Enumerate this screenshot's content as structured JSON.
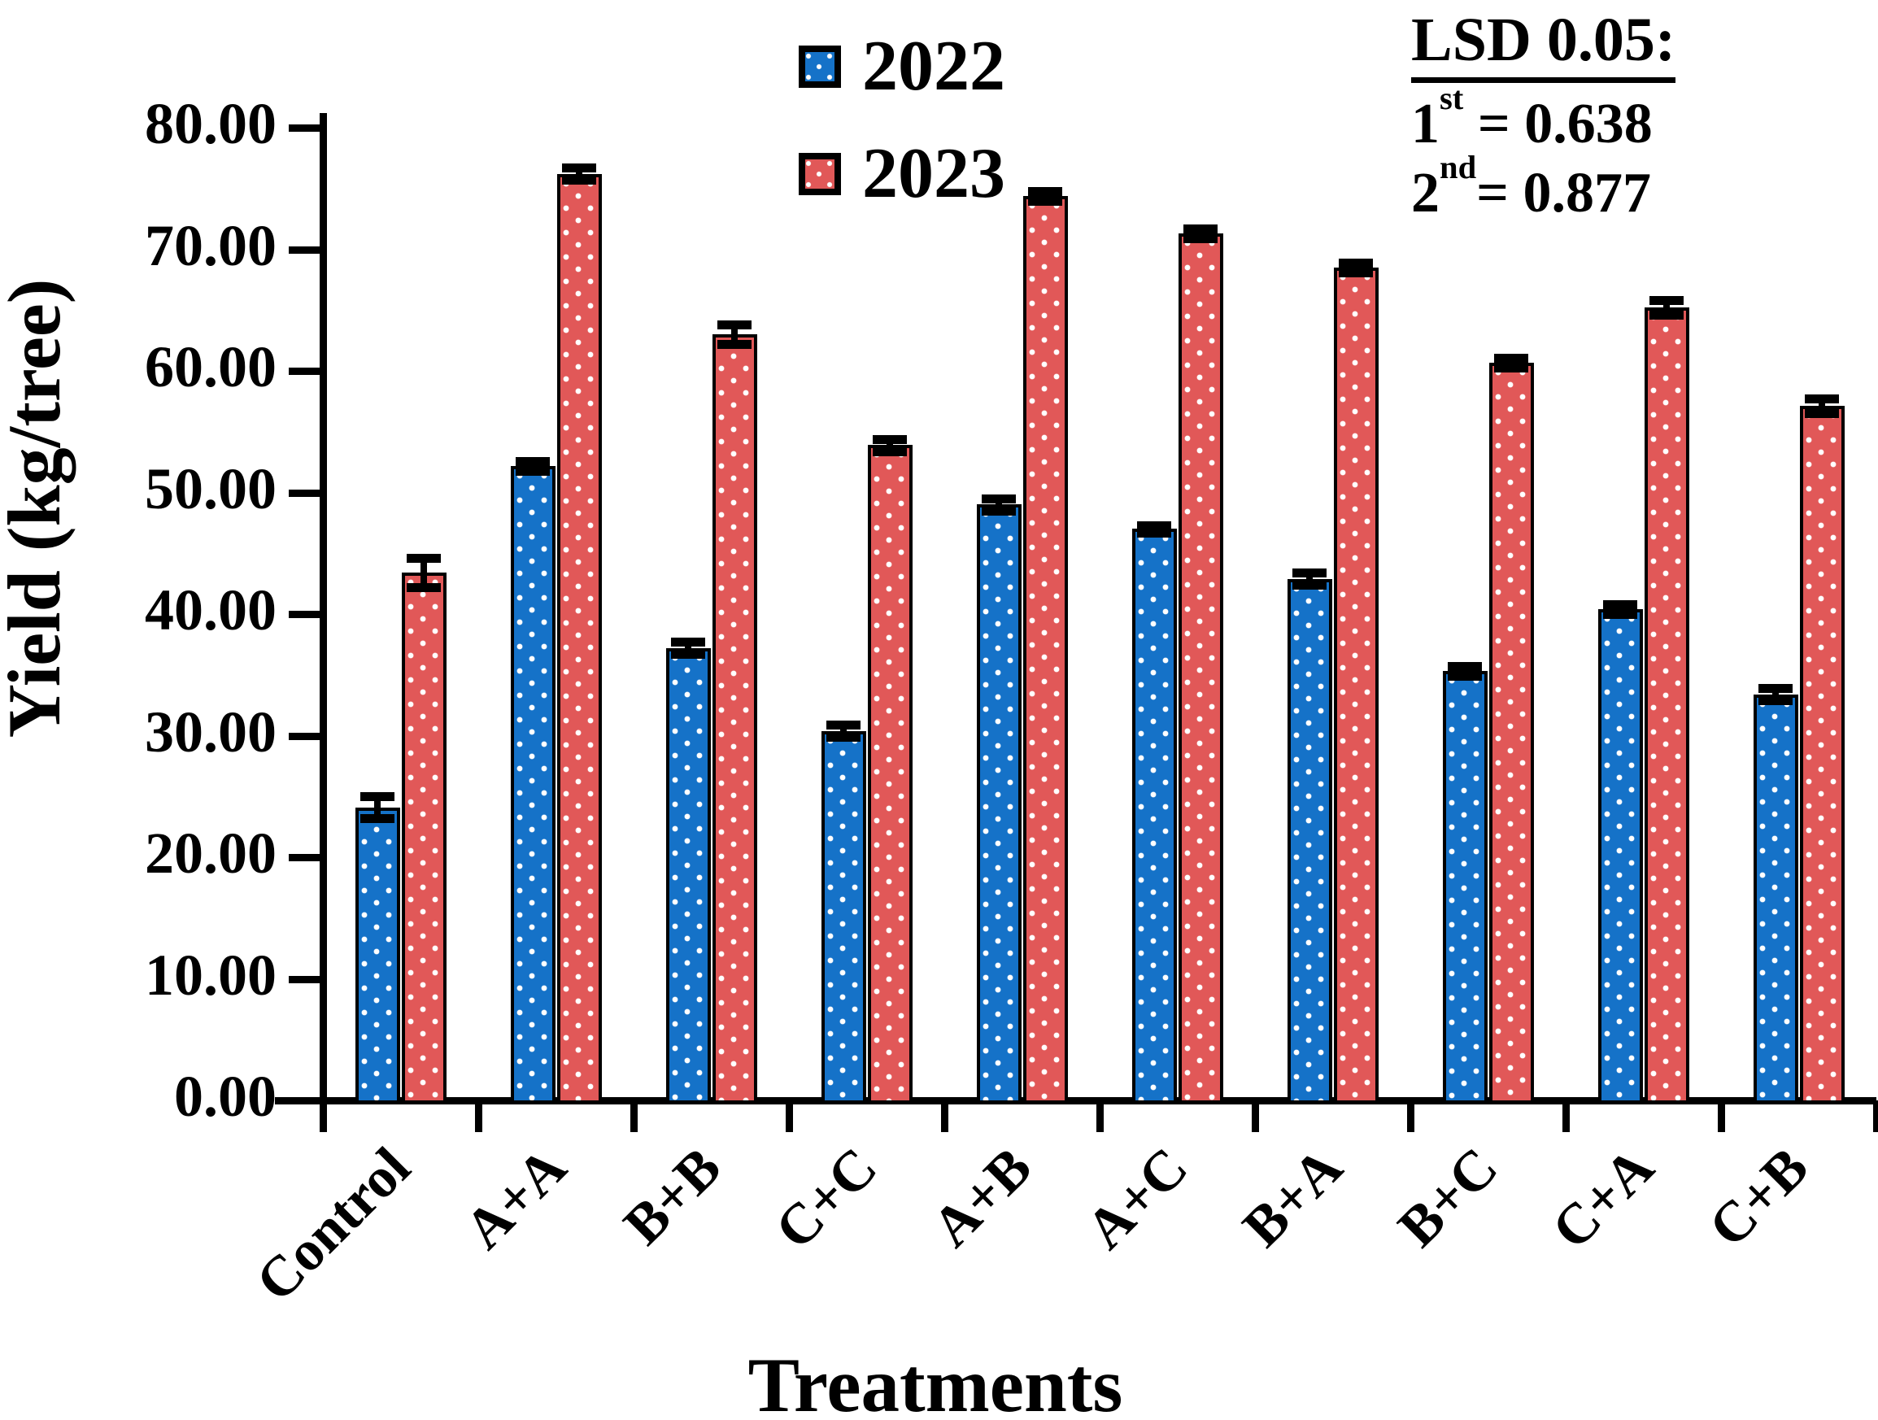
{
  "figure_title": "",
  "annotation": {
    "heading": "LSD 0.05:",
    "entries": [
      {
        "base": "1",
        "sup": "st",
        "rest": "= 0.638"
      },
      {
        "base": "2",
        "sup": "nd",
        "rest": "= 0.877"
      }
    ]
  },
  "chart_data": {
    "type": "bar",
    "title": "",
    "categories": [
      "Control",
      "A+A",
      "B+B",
      "C+C",
      "A+B",
      "A+C",
      "B+A",
      "B+C",
      "C+A",
      "C+B"
    ],
    "series": [
      {
        "name": "2022",
        "color": "#1572C8",
        "values": [
          24.1,
          52.2,
          37.2,
          30.4,
          49.0,
          47.0,
          42.9,
          35.3,
          40.4,
          33.4
        ],
        "errors": [
          0.9,
          0.4,
          0.5,
          0.5,
          0.5,
          0.3,
          0.5,
          0.4,
          0.4,
          0.5
        ]
      },
      {
        "name": "2023",
        "color": "#E15858",
        "values": [
          43.4,
          76.2,
          63.0,
          53.9,
          74.4,
          71.3,
          68.5,
          60.7,
          65.2,
          57.1
        ],
        "errors": [
          1.2,
          0.5,
          0.8,
          0.5,
          0.4,
          0.4,
          0.4,
          0.4,
          0.6,
          0.6
        ]
      }
    ],
    "xlabel": "Treatments",
    "ylabel": "Yield (kg/tree)",
    "ylim": [
      0,
      80
    ],
    "ytick_step": 10,
    "ytick_decimals": 2,
    "bar_pattern": "white-dots",
    "error_bars": true,
    "grid": false,
    "legend_position": "top-center",
    "x_label_rotation": -45
  }
}
